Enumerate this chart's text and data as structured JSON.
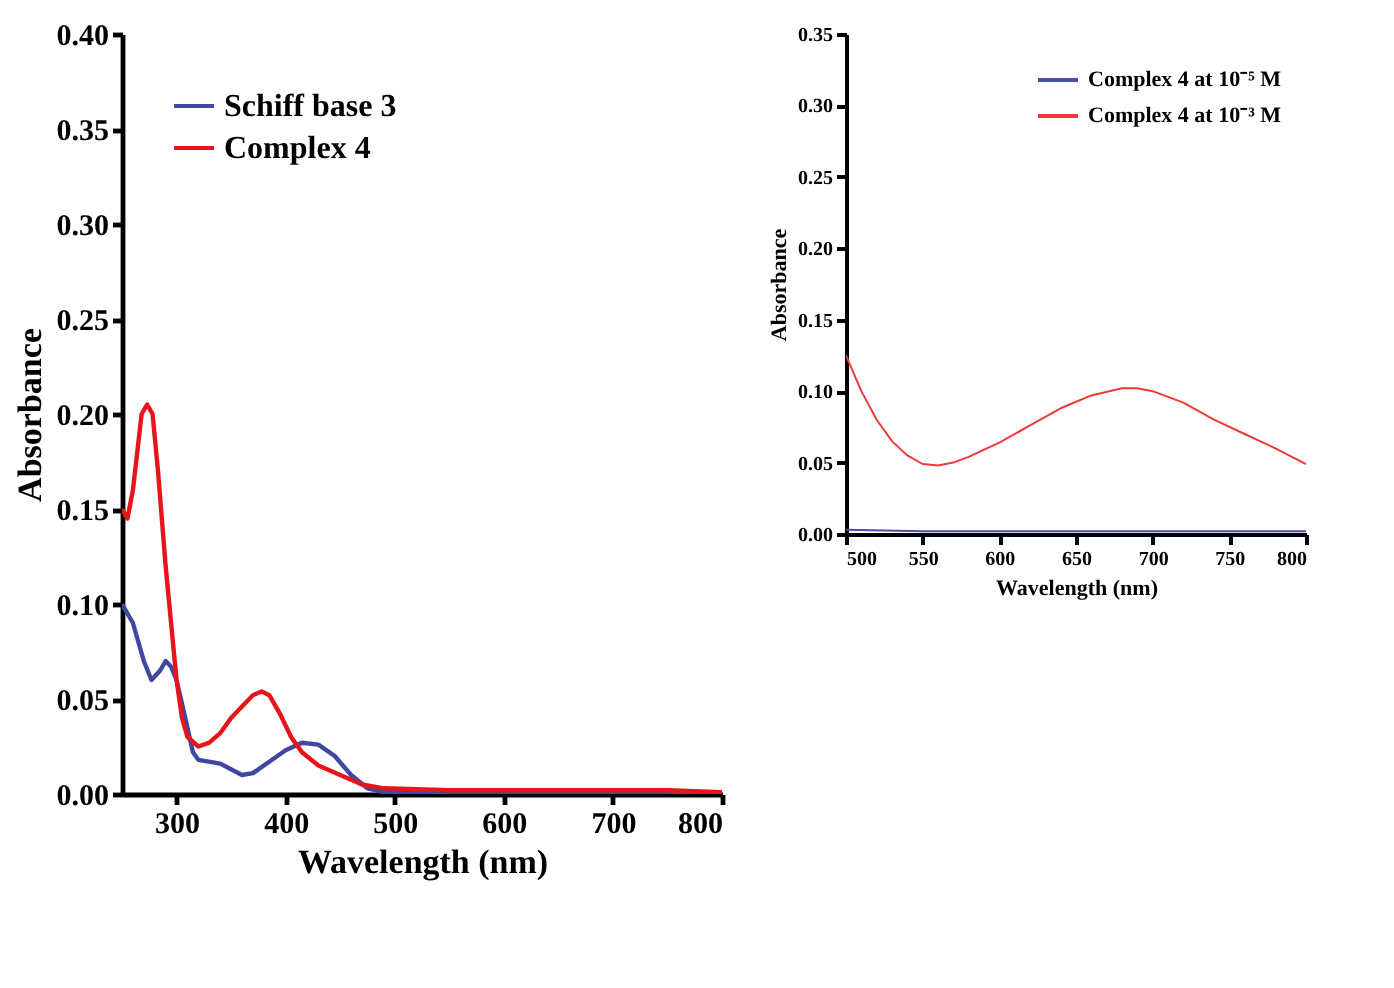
{
  "chart_data": [
    {
      "type": "line",
      "xlabel": "Wavelength (nm)",
      "ylabel": "Absorbance",
      "xlim": [
        250,
        800
      ],
      "xticks": [
        300,
        400,
        500,
        600,
        700,
        800
      ],
      "ylim": [
        0,
        0.4
      ],
      "yticks": [
        {
          "value": 0,
          "label": "0.00"
        },
        0.05,
        {
          "value": 0.1,
          "label": "0.10"
        },
        0.15,
        {
          "value": 0.2,
          "label": "0.20"
        },
        0.25,
        {
          "value": 0.3,
          "label": "0.30"
        },
        0.35,
        {
          "value": 0.4,
          "label": "0.40"
        }
      ],
      "grid": false,
      "legend": "top left",
      "marker": "none",
      "line_style": "solid",
      "series": [
        {
          "name": "Schiff base 3",
          "color": "#3f48a0",
          "x": [
            250,
            260,
            270,
            277,
            285,
            290,
            295,
            300,
            308,
            315,
            320,
            340,
            360,
            370,
            385,
            400,
            415,
            430,
            445,
            460,
            475,
            490,
            550,
            650,
            800
          ],
          "values": [
            0.1,
            0.09,
            0.07,
            0.06,
            0.065,
            0.07,
            0.067,
            0.06,
            0.04,
            0.022,
            0.018,
            0.016,
            0.01,
            0.011,
            0.017,
            0.023,
            0.027,
            0.026,
            0.02,
            0.01,
            0.003,
            0.001,
            0.001,
            0.001,
            0.001
          ]
        },
        {
          "name": "Complex 4",
          "color": "#e8141c",
          "x": [
            250,
            255,
            260,
            268,
            273,
            278,
            283,
            290,
            295,
            300,
            305,
            310,
            320,
            330,
            340,
            350,
            360,
            370,
            378,
            385,
            395,
            405,
            415,
            430,
            450,
            470,
            490,
            550,
            650,
            750,
            800
          ],
          "values": [
            0.15,
            0.145,
            0.16,
            0.2,
            0.205,
            0.2,
            0.17,
            0.12,
            0.09,
            0.06,
            0.04,
            0.03,
            0.025,
            0.027,
            0.032,
            0.04,
            0.046,
            0.052,
            0.054,
            0.052,
            0.042,
            0.03,
            0.022,
            0.015,
            0.01,
            0.005,
            0.003,
            0.002,
            0.002,
            0.002,
            0.001
          ]
        }
      ]
    },
    {
      "type": "line",
      "xlabel": "Wavelength (nm)",
      "ylabel": "Absorbance",
      "xlim": [
        500,
        800
      ],
      "xticks": [
        500,
        550,
        600,
        650,
        700,
        750,
        800
      ],
      "ylim": [
        0,
        0.35
      ],
      "yticks": [
        {
          "value": 0,
          "label": "0.00"
        },
        0.05,
        {
          "value": 0.1,
          "label": "0.10"
        },
        0.15,
        {
          "value": 0.2,
          "label": "0.20"
        },
        0.25,
        {
          "value": 0.3,
          "label": "0.30"
        },
        0.35
      ],
      "grid": false,
      "legend": "top right",
      "marker": "none",
      "line_style": "solid",
      "series": [
        {
          "name": "Complex 4 at 10⁻⁵ M",
          "color": "#4a4fa8",
          "x": [
            500,
            550,
            600,
            650,
            700,
            750,
            800
          ],
          "values": [
            0.003,
            0.002,
            0.002,
            0.002,
            0.002,
            0.002,
            0.002
          ]
        },
        {
          "name": "Complex 4 at 10⁻³ M",
          "color": "#f03a3a",
          "x": [
            500,
            510,
            520,
            530,
            540,
            550,
            560,
            570,
            580,
            600,
            620,
            640,
            660,
            680,
            690,
            700,
            720,
            740,
            760,
            780,
            800
          ],
          "values": [
            0.125,
            0.1,
            0.08,
            0.065,
            0.055,
            0.049,
            0.048,
            0.05,
            0.054,
            0.064,
            0.076,
            0.088,
            0.097,
            0.102,
            0.102,
            0.1,
            0.092,
            0.08,
            0.07,
            0.06,
            0.049
          ]
        }
      ]
    }
  ]
}
